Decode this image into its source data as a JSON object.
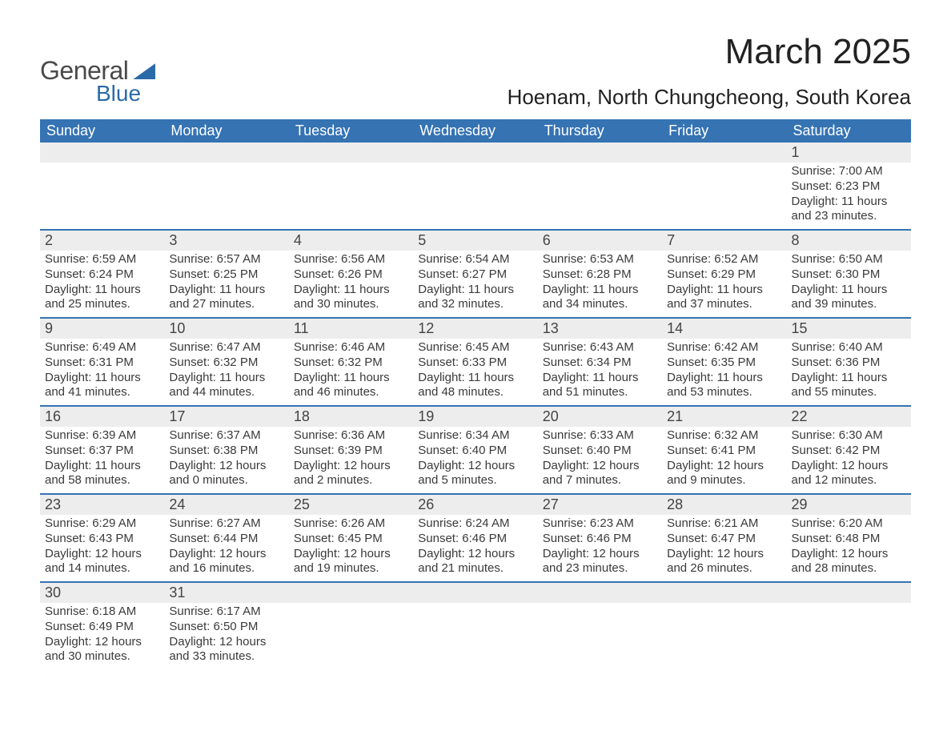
{
  "brand": {
    "name1": "General",
    "name2": "Blue",
    "accent": "#2b6aa8"
  },
  "title": "March 2025",
  "location": "Hoenam, North Chungcheong, South Korea",
  "colors": {
    "header_bg": "#3573b3",
    "header_text": "#ffffff",
    "daynum_bg": "#ededed",
    "row_border": "#3573b3",
    "text": "#3a3a3a",
    "background": "#ffffff"
  },
  "fonts": {
    "title_size_pt": 33,
    "location_size_pt": 20,
    "header_size_pt": 14,
    "cell_size_pt": 11
  },
  "weekdays": [
    "Sunday",
    "Monday",
    "Tuesday",
    "Wednesday",
    "Thursday",
    "Friday",
    "Saturday"
  ],
  "weeks": [
    [
      null,
      null,
      null,
      null,
      null,
      null,
      {
        "day": "1",
        "sunrise": "Sunrise: 7:00 AM",
        "sunset": "Sunset: 6:23 PM",
        "daylight": "Daylight: 11 hours and 23 minutes."
      }
    ],
    [
      {
        "day": "2",
        "sunrise": "Sunrise: 6:59 AM",
        "sunset": "Sunset: 6:24 PM",
        "daylight": "Daylight: 11 hours and 25 minutes."
      },
      {
        "day": "3",
        "sunrise": "Sunrise: 6:57 AM",
        "sunset": "Sunset: 6:25 PM",
        "daylight": "Daylight: 11 hours and 27 minutes."
      },
      {
        "day": "4",
        "sunrise": "Sunrise: 6:56 AM",
        "sunset": "Sunset: 6:26 PM",
        "daylight": "Daylight: 11 hours and 30 minutes."
      },
      {
        "day": "5",
        "sunrise": "Sunrise: 6:54 AM",
        "sunset": "Sunset: 6:27 PM",
        "daylight": "Daylight: 11 hours and 32 minutes."
      },
      {
        "day": "6",
        "sunrise": "Sunrise: 6:53 AM",
        "sunset": "Sunset: 6:28 PM",
        "daylight": "Daylight: 11 hours and 34 minutes."
      },
      {
        "day": "7",
        "sunrise": "Sunrise: 6:52 AM",
        "sunset": "Sunset: 6:29 PM",
        "daylight": "Daylight: 11 hours and 37 minutes."
      },
      {
        "day": "8",
        "sunrise": "Sunrise: 6:50 AM",
        "sunset": "Sunset: 6:30 PM",
        "daylight": "Daylight: 11 hours and 39 minutes."
      }
    ],
    [
      {
        "day": "9",
        "sunrise": "Sunrise: 6:49 AM",
        "sunset": "Sunset: 6:31 PM",
        "daylight": "Daylight: 11 hours and 41 minutes."
      },
      {
        "day": "10",
        "sunrise": "Sunrise: 6:47 AM",
        "sunset": "Sunset: 6:32 PM",
        "daylight": "Daylight: 11 hours and 44 minutes."
      },
      {
        "day": "11",
        "sunrise": "Sunrise: 6:46 AM",
        "sunset": "Sunset: 6:32 PM",
        "daylight": "Daylight: 11 hours and 46 minutes."
      },
      {
        "day": "12",
        "sunrise": "Sunrise: 6:45 AM",
        "sunset": "Sunset: 6:33 PM",
        "daylight": "Daylight: 11 hours and 48 minutes."
      },
      {
        "day": "13",
        "sunrise": "Sunrise: 6:43 AM",
        "sunset": "Sunset: 6:34 PM",
        "daylight": "Daylight: 11 hours and 51 minutes."
      },
      {
        "day": "14",
        "sunrise": "Sunrise: 6:42 AM",
        "sunset": "Sunset: 6:35 PM",
        "daylight": "Daylight: 11 hours and 53 minutes."
      },
      {
        "day": "15",
        "sunrise": "Sunrise: 6:40 AM",
        "sunset": "Sunset: 6:36 PM",
        "daylight": "Daylight: 11 hours and 55 minutes."
      }
    ],
    [
      {
        "day": "16",
        "sunrise": "Sunrise: 6:39 AM",
        "sunset": "Sunset: 6:37 PM",
        "daylight": "Daylight: 11 hours and 58 minutes."
      },
      {
        "day": "17",
        "sunrise": "Sunrise: 6:37 AM",
        "sunset": "Sunset: 6:38 PM",
        "daylight": "Daylight: 12 hours and 0 minutes."
      },
      {
        "day": "18",
        "sunrise": "Sunrise: 6:36 AM",
        "sunset": "Sunset: 6:39 PM",
        "daylight": "Daylight: 12 hours and 2 minutes."
      },
      {
        "day": "19",
        "sunrise": "Sunrise: 6:34 AM",
        "sunset": "Sunset: 6:40 PM",
        "daylight": "Daylight: 12 hours and 5 minutes."
      },
      {
        "day": "20",
        "sunrise": "Sunrise: 6:33 AM",
        "sunset": "Sunset: 6:40 PM",
        "daylight": "Daylight: 12 hours and 7 minutes."
      },
      {
        "day": "21",
        "sunrise": "Sunrise: 6:32 AM",
        "sunset": "Sunset: 6:41 PM",
        "daylight": "Daylight: 12 hours and 9 minutes."
      },
      {
        "day": "22",
        "sunrise": "Sunrise: 6:30 AM",
        "sunset": "Sunset: 6:42 PM",
        "daylight": "Daylight: 12 hours and 12 minutes."
      }
    ],
    [
      {
        "day": "23",
        "sunrise": "Sunrise: 6:29 AM",
        "sunset": "Sunset: 6:43 PM",
        "daylight": "Daylight: 12 hours and 14 minutes."
      },
      {
        "day": "24",
        "sunrise": "Sunrise: 6:27 AM",
        "sunset": "Sunset: 6:44 PM",
        "daylight": "Daylight: 12 hours and 16 minutes."
      },
      {
        "day": "25",
        "sunrise": "Sunrise: 6:26 AM",
        "sunset": "Sunset: 6:45 PM",
        "daylight": "Daylight: 12 hours and 19 minutes."
      },
      {
        "day": "26",
        "sunrise": "Sunrise: 6:24 AM",
        "sunset": "Sunset: 6:46 PM",
        "daylight": "Daylight: 12 hours and 21 minutes."
      },
      {
        "day": "27",
        "sunrise": "Sunrise: 6:23 AM",
        "sunset": "Sunset: 6:46 PM",
        "daylight": "Daylight: 12 hours and 23 minutes."
      },
      {
        "day": "28",
        "sunrise": "Sunrise: 6:21 AM",
        "sunset": "Sunset: 6:47 PM",
        "daylight": "Daylight: 12 hours and 26 minutes."
      },
      {
        "day": "29",
        "sunrise": "Sunrise: 6:20 AM",
        "sunset": "Sunset: 6:48 PM",
        "daylight": "Daylight: 12 hours and 28 minutes."
      }
    ],
    [
      {
        "day": "30",
        "sunrise": "Sunrise: 6:18 AM",
        "sunset": "Sunset: 6:49 PM",
        "daylight": "Daylight: 12 hours and 30 minutes."
      },
      {
        "day": "31",
        "sunrise": "Sunrise: 6:17 AM",
        "sunset": "Sunset: 6:50 PM",
        "daylight": "Daylight: 12 hours and 33 minutes."
      },
      null,
      null,
      null,
      null,
      null
    ]
  ]
}
